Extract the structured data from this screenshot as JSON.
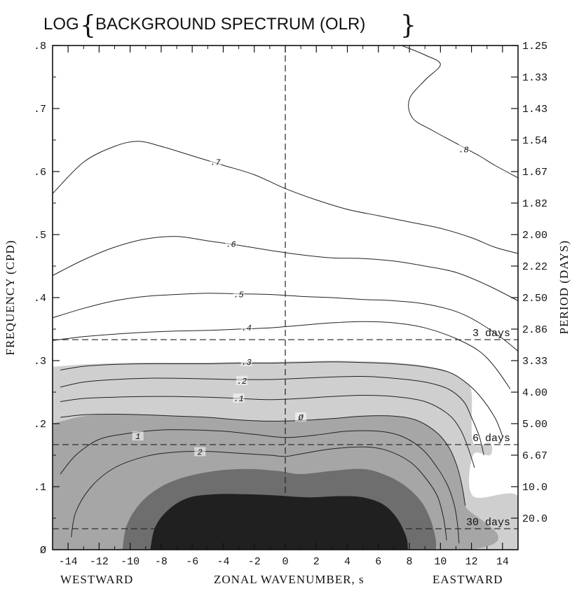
{
  "chart_data": {
    "type": "contour",
    "title_prefix": "LOG",
    "title_inner": "BACKGROUND SPECTRUM  (OLR)",
    "xlabel": "ZONAL WAVENUMBER, s",
    "xlabel_left": "WESTWARD",
    "xlabel_right": "EASTWARD",
    "ylabel_left": "FREQUENCY (CPD)",
    "ylabel_right": "PERIOD (DAYS)",
    "xlim": [
      -15,
      15
    ],
    "ylim": [
      0,
      0.8
    ],
    "x_ticks": [
      -14,
      -12,
      -10,
      -8,
      -6,
      -4,
      -2,
      0,
      2,
      4,
      6,
      8,
      10,
      12,
      14
    ],
    "x_tick_labels": [
      "-14",
      "-12",
      "-10",
      "-8",
      "-6",
      "-4",
      "-2",
      "0",
      "2",
      "4",
      "6",
      "8",
      "10",
      "12",
      "14"
    ],
    "y_ticks": [
      0,
      0.1,
      0.2,
      0.3,
      0.4,
      0.5,
      0.6,
      0.7,
      0.8
    ],
    "y_tick_labels": [
      "Ø",
      ".1",
      ".2",
      ".3",
      ".4",
      ".5",
      ".6",
      ".7",
      ".8"
    ],
    "period_ticks": [
      {
        "freq": 0.8,
        "label": "1.25"
      },
      {
        "freq": 0.75,
        "label": "1.33"
      },
      {
        "freq": 0.7,
        "label": "1.43"
      },
      {
        "freq": 0.65,
        "label": "1.54"
      },
      {
        "freq": 0.6,
        "label": "1.67"
      },
      {
        "freq": 0.55,
        "label": "1.82"
      },
      {
        "freq": 0.5,
        "label": "2.00"
      },
      {
        "freq": 0.45,
        "label": "2.22"
      },
      {
        "freq": 0.4,
        "label": "2.50"
      },
      {
        "freq": 0.35,
        "label": "2.86"
      },
      {
        "freq": 0.3,
        "label": "3.33"
      },
      {
        "freq": 0.25,
        "label": "4.00"
      },
      {
        "freq": 0.2,
        "label": "5.00"
      },
      {
        "freq": 0.15,
        "label": "6.67"
      },
      {
        "freq": 0.1,
        "label": "10.0"
      },
      {
        "freq": 0.05,
        "label": "20.0"
      }
    ],
    "reference_lines": [
      {
        "freq": 0.3333,
        "label": "3 days"
      },
      {
        "freq": 0.1667,
        "label": "6 days"
      },
      {
        "freq": 0.0333,
        "label": "30 days"
      }
    ],
    "contours": [
      {
        "level": ".8",
        "label_at": [
          11.5,
          0.635
        ],
        "points": [
          [
            7.5,
            0.8
          ],
          [
            9,
            0.785
          ],
          [
            10,
            0.77
          ],
          [
            9,
            0.745
          ],
          [
            8,
            0.715
          ],
          [
            8.2,
            0.685
          ],
          [
            9.5,
            0.665
          ],
          [
            11,
            0.645
          ],
          [
            12.5,
            0.625
          ],
          [
            13.5,
            0.61
          ],
          [
            15,
            0.59
          ]
        ]
      },
      {
        "level": ".7",
        "label_at": [
          -4.5,
          0.615
        ],
        "points": [
          [
            -15,
            0.565
          ],
          [
            -13,
            0.615
          ],
          [
            -11,
            0.64
          ],
          [
            -9.5,
            0.648
          ],
          [
            -8,
            0.64
          ],
          [
            -6,
            0.625
          ],
          [
            -4,
            0.61
          ],
          [
            -2,
            0.595
          ],
          [
            0,
            0.573
          ],
          [
            2,
            0.555
          ],
          [
            4,
            0.54
          ],
          [
            6,
            0.53
          ],
          [
            8,
            0.52
          ],
          [
            10,
            0.51
          ],
          [
            12,
            0.495
          ],
          [
            13.5,
            0.48
          ],
          [
            15,
            0.47
          ]
        ]
      },
      {
        "level": ".6",
        "label_at": [
          -3.5,
          0.485
        ],
        "points": [
          [
            -15,
            0.435
          ],
          [
            -13,
            0.46
          ],
          [
            -11,
            0.48
          ],
          [
            -9,
            0.493
          ],
          [
            -7,
            0.497
          ],
          [
            -5,
            0.49
          ],
          [
            -3,
            0.483
          ],
          [
            -1,
            0.475
          ],
          [
            1,
            0.468
          ],
          [
            3,
            0.463
          ],
          [
            5,
            0.462
          ],
          [
            7,
            0.458
          ],
          [
            9,
            0.45
          ],
          [
            11,
            0.44
          ],
          [
            13,
            0.42
          ],
          [
            15,
            0.395
          ]
        ]
      },
      {
        "level": ".5",
        "label_at": [
          -3,
          0.405
        ],
        "points": [
          [
            -15,
            0.368
          ],
          [
            -13,
            0.383
          ],
          [
            -11,
            0.395
          ],
          [
            -9,
            0.402
          ],
          [
            -7,
            0.405
          ],
          [
            -5,
            0.407
          ],
          [
            -3,
            0.406
          ],
          [
            -1,
            0.405
          ],
          [
            1,
            0.402
          ],
          [
            3,
            0.4
          ],
          [
            5,
            0.397
          ],
          [
            7,
            0.395
          ],
          [
            9,
            0.39
          ],
          [
            11,
            0.378
          ],
          [
            12.5,
            0.36
          ],
          [
            14,
            0.335
          ],
          [
            15,
            0.315
          ]
        ]
      },
      {
        "level": ".4",
        "label_at": [
          -2.5,
          0.352
        ],
        "points": [
          [
            -15,
            0.332
          ],
          [
            -13,
            0.338
          ],
          [
            -11,
            0.342
          ],
          [
            -9,
            0.345
          ],
          [
            -7,
            0.347
          ],
          [
            -5,
            0.348
          ],
          [
            -3,
            0.35
          ],
          [
            -1,
            0.352
          ],
          [
            1,
            0.356
          ],
          [
            3,
            0.36
          ],
          [
            5,
            0.362
          ],
          [
            7,
            0.36
          ],
          [
            9,
            0.352
          ],
          [
            11,
            0.335
          ],
          [
            12.5,
            0.315
          ],
          [
            13.5,
            0.29
          ],
          [
            14.5,
            0.255
          ]
        ]
      },
      {
        "level": ".3",
        "label_at": [
          -2.5,
          0.298
        ],
        "points": [
          [
            -14.5,
            0.285
          ],
          [
            -13,
            0.291
          ],
          [
            -11,
            0.294
          ],
          [
            -9,
            0.295
          ],
          [
            -7,
            0.295
          ],
          [
            -5,
            0.295
          ],
          [
            -3,
            0.296
          ],
          [
            -1,
            0.296
          ],
          [
            1,
            0.297
          ],
          [
            3,
            0.298
          ],
          [
            5,
            0.297
          ],
          [
            7,
            0.295
          ],
          [
            9,
            0.29
          ],
          [
            10.5,
            0.282
          ],
          [
            11.5,
            0.268
          ],
          [
            12.5,
            0.245
          ],
          [
            13.5,
            0.21
          ],
          [
            14,
            0.18
          ]
        ]
      },
      {
        "level": ".2",
        "label_at": [
          -2.8,
          0.268
        ],
        "points": [
          [
            -14.5,
            0.258
          ],
          [
            -13,
            0.266
          ],
          [
            -11,
            0.27
          ],
          [
            -9,
            0.272
          ],
          [
            -7,
            0.272
          ],
          [
            -5,
            0.271
          ],
          [
            -3,
            0.27
          ],
          [
            -1,
            0.27
          ],
          [
            1,
            0.272
          ],
          [
            3,
            0.274
          ],
          [
            5,
            0.275
          ],
          [
            7,
            0.272
          ],
          [
            9,
            0.266
          ],
          [
            10.5,
            0.255
          ],
          [
            11.5,
            0.235
          ],
          [
            12,
            0.21
          ],
          [
            12.5,
            0.18
          ],
          [
            12.8,
            0.15
          ]
        ]
      },
      {
        "level": ".1",
        "label_at": [
          -3,
          0.24
        ],
        "points": [
          [
            -14.5,
            0.235
          ],
          [
            -13,
            0.24
          ],
          [
            -11,
            0.242
          ],
          [
            -9,
            0.243
          ],
          [
            -7,
            0.243
          ],
          [
            -5,
            0.242
          ],
          [
            -3,
            0.24
          ],
          [
            -1,
            0.238
          ],
          [
            1,
            0.24
          ],
          [
            3,
            0.243
          ],
          [
            5,
            0.245
          ],
          [
            7,
            0.243
          ],
          [
            9,
            0.235
          ],
          [
            10.5,
            0.215
          ],
          [
            11.3,
            0.19
          ],
          [
            11.8,
            0.16
          ],
          [
            12.2,
            0.13
          ]
        ]
      },
      {
        "level": "Ø",
        "label_at": [
          1,
          0.21
        ],
        "points": [
          [
            -14.5,
            0.21
          ],
          [
            -13,
            0.214
          ],
          [
            -11,
            0.215
          ],
          [
            -9,
            0.214
          ],
          [
            -7,
            0.212
          ],
          [
            -5,
            0.21
          ],
          [
            -3,
            0.206
          ],
          [
            -1,
            0.204
          ],
          [
            1,
            0.205
          ],
          [
            3,
            0.208
          ],
          [
            5,
            0.212
          ],
          [
            7,
            0.212
          ],
          [
            8.5,
            0.205
          ],
          [
            9.8,
            0.185
          ],
          [
            10.6,
            0.16
          ],
          [
            11.1,
            0.13
          ],
          [
            11.4,
            0.1
          ],
          [
            11.6,
            0.07
          ]
        ]
      },
      {
        "level": "1",
        "label_at": [
          -9.5,
          0.18
        ],
        "points": [
          [
            -14.5,
            0.12
          ],
          [
            -13.5,
            0.15
          ],
          [
            -12,
            0.175
          ],
          [
            -10,
            0.185
          ],
          [
            -8,
            0.19
          ],
          [
            -6,
            0.19
          ],
          [
            -4,
            0.188
          ],
          [
            -2,
            0.183
          ],
          [
            0,
            0.178
          ],
          [
            2,
            0.182
          ],
          [
            4,
            0.188
          ],
          [
            6,
            0.188
          ],
          [
            7.5,
            0.18
          ],
          [
            8.8,
            0.16
          ],
          [
            9.8,
            0.13
          ],
          [
            10.5,
            0.1
          ],
          [
            10.9,
            0.07
          ],
          [
            11.1,
            0.04
          ],
          [
            11.2,
            0.01
          ]
        ]
      },
      {
        "level": "2",
        "label_at": [
          -5.5,
          0.155
        ],
        "points": [
          [
            -13.8,
            0.02
          ],
          [
            -13.5,
            0.06
          ],
          [
            -12.5,
            0.1
          ],
          [
            -11,
            0.13
          ],
          [
            -9,
            0.148
          ],
          [
            -7,
            0.155
          ],
          [
            -5,
            0.156
          ],
          [
            -3,
            0.153
          ],
          [
            -1,
            0.15
          ],
          [
            0,
            0.148
          ],
          [
            1,
            0.152
          ],
          [
            3,
            0.16
          ],
          [
            5,
            0.163
          ],
          [
            6.5,
            0.158
          ],
          [
            8,
            0.14
          ],
          [
            9,
            0.115
          ],
          [
            9.8,
            0.085
          ],
          [
            10.2,
            0.05
          ],
          [
            10.4,
            0.015
          ]
        ]
      }
    ],
    "shaded_regions": [
      {
        "range": "0 to 1",
        "fill": "#cfcfcf",
        "points": [
          [
            -15,
            0.29
          ],
          [
            -13,
            0.294
          ],
          [
            -11,
            0.296
          ],
          [
            -9,
            0.297
          ],
          [
            -7,
            0.297
          ],
          [
            -5,
            0.297
          ],
          [
            -3,
            0.298
          ],
          [
            -1,
            0.298
          ],
          [
            1,
            0.299
          ],
          [
            3,
            0.3
          ],
          [
            5,
            0.299
          ],
          [
            7,
            0.297
          ],
          [
            9,
            0.292
          ],
          [
            10.5,
            0.283
          ],
          [
            11.5,
            0.268
          ],
          [
            12,
            0.25
          ],
          [
            12.1,
            0.17
          ],
          [
            13.2,
            0.17
          ],
          [
            13.2,
            0.15
          ],
          [
            12.1,
            0.15
          ],
          [
            12.1,
            0.085
          ],
          [
            15,
            0.085
          ],
          [
            15,
            0
          ],
          [
            -15,
            0
          ]
        ]
      },
      {
        "range": "1 to 2",
        "fill": "#a6a6a6",
        "points": [
          [
            -15,
            0.2
          ],
          [
            -13,
            0.212
          ],
          [
            -11,
            0.215
          ],
          [
            -9,
            0.214
          ],
          [
            -7,
            0.212
          ],
          [
            -5,
            0.21
          ],
          [
            -3,
            0.206
          ],
          [
            -1,
            0.204
          ],
          [
            1,
            0.205
          ],
          [
            3,
            0.208
          ],
          [
            5,
            0.212
          ],
          [
            7,
            0.212
          ],
          [
            8.5,
            0.205
          ],
          [
            9.8,
            0.185
          ],
          [
            10.6,
            0.16
          ],
          [
            11.1,
            0.13
          ],
          [
            11.4,
            0.1
          ],
          [
            11.6,
            0.07
          ],
          [
            11.8,
            0
          ],
          [
            -15,
            0
          ]
        ]
      },
      {
        "range": "2 to 3",
        "fill": "#6e6e6e",
        "points": [
          [
            -10.5,
            0
          ],
          [
            -10.2,
            0.04
          ],
          [
            -9.3,
            0.075
          ],
          [
            -8,
            0.1
          ],
          [
            -6.5,
            0.115
          ],
          [
            -4.5,
            0.125
          ],
          [
            -2.5,
            0.128
          ],
          [
            -0.5,
            0.125
          ],
          [
            1,
            0.12
          ],
          [
            3,
            0.125
          ],
          [
            5,
            0.128
          ],
          [
            6.5,
            0.118
          ],
          [
            7.8,
            0.1
          ],
          [
            8.8,
            0.075
          ],
          [
            9.4,
            0.045
          ],
          [
            9.7,
            0.015
          ],
          [
            9.7,
            0
          ]
        ]
      },
      {
        "range": "> 3",
        "fill": "#202020",
        "points": [
          [
            -8.7,
            0
          ],
          [
            -8.4,
            0.035
          ],
          [
            -7.6,
            0.062
          ],
          [
            -6.3,
            0.082
          ],
          [
            -4.5,
            0.088
          ],
          [
            -2.5,
            0.088
          ],
          [
            -0.5,
            0.086
          ],
          [
            1.5,
            0.083
          ],
          [
            3.5,
            0.085
          ],
          [
            5,
            0.083
          ],
          [
            6.3,
            0.072
          ],
          [
            7.2,
            0.05
          ],
          [
            7.8,
            0.02
          ],
          [
            7.9,
            0
          ]
        ]
      }
    ]
  }
}
